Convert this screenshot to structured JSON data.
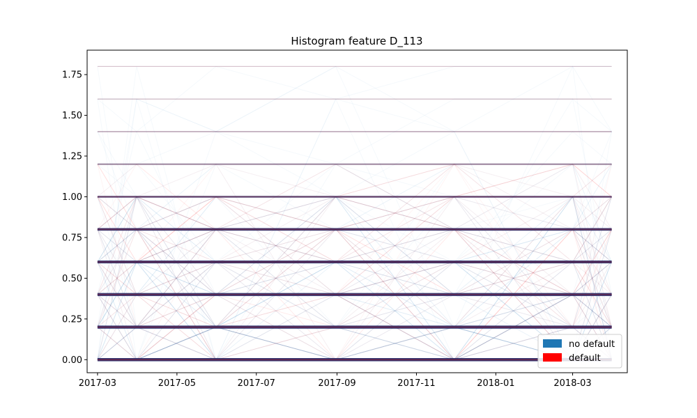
{
  "chart_data": {
    "type": "line",
    "title": "Histogram feature D_113",
    "xlabel": "",
    "ylabel": "",
    "x_ticks": [
      "2017-03",
      "2017-05",
      "2017-07",
      "2017-09",
      "2017-11",
      "2018-01",
      "2018-03"
    ],
    "y_ticks": [
      "0.00",
      "0.25",
      "0.50",
      "0.75",
      "1.00",
      "1.25",
      "1.50",
      "1.75"
    ],
    "xlim": [
      "2017-02-21",
      "2018-04-12"
    ],
    "ylim": [
      -0.08,
      1.9
    ],
    "levels": [
      0.0,
      0.2,
      0.4,
      0.6,
      0.8,
      1.0,
      1.2,
      1.4,
      1.6,
      1.8
    ],
    "level_weights": [
      1.0,
      0.95,
      0.9,
      0.85,
      0.8,
      0.55,
      0.35,
      0.2,
      0.1,
      0.06
    ],
    "transition_dates": [
      "2017-03-01",
      "2017-03-31",
      "2017-05-31",
      "2017-08-31",
      "2017-11-30",
      "2018-03-01",
      "2018-03-31"
    ],
    "grid": false,
    "legend": {
      "position": "lower-right",
      "entries": [
        {
          "label": "no default",
          "color": "#1f77b4"
        },
        {
          "label": "default",
          "color": "#ff0000"
        }
      ]
    },
    "series": [
      {
        "name": "no default",
        "color": "#1f77b4"
      },
      {
        "name": "default",
        "color": "#ff0000"
      }
    ]
  }
}
